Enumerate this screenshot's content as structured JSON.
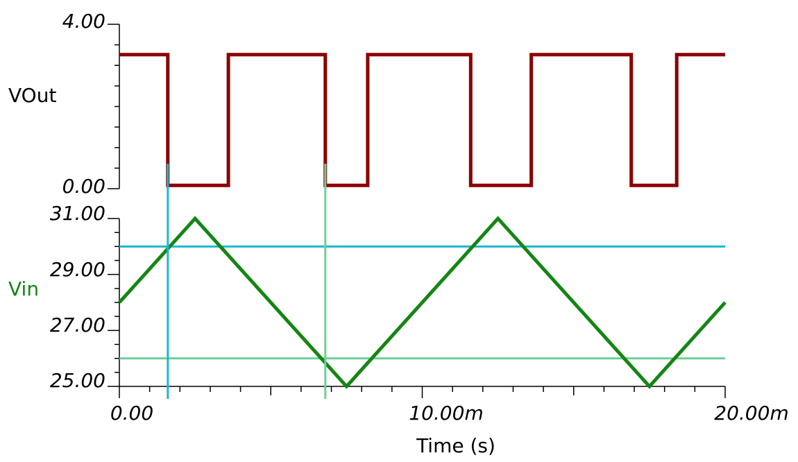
{
  "chart_data": [
    {
      "type": "line",
      "title": "",
      "xlabel": "Time (s)",
      "ylabel": "VOut",
      "xlim": [
        0,
        0.02
      ],
      "ylim": [
        0,
        4
      ],
      "yticks": [
        "4.00",
        "0.00"
      ],
      "series": [
        {
          "name": "VOut",
          "color": "#8b0000",
          "x": [
            0,
            0.0016,
            0.0016,
            0.0036,
            0.0036,
            0.0068,
            0.0068,
            0.0082,
            0.0082,
            0.0116,
            0.0116,
            0.0136,
            0.0136,
            0.0169,
            0.0169,
            0.0184,
            0.0184,
            0.02
          ],
          "y": [
            3.26,
            3.26,
            0.08,
            0.08,
            3.26,
            3.26,
            0.08,
            0.08,
            3.26,
            3.26,
            0.08,
            0.08,
            3.26,
            3.26,
            0.08,
            0.08,
            3.26,
            3.26
          ]
        }
      ]
    },
    {
      "type": "line",
      "title": "",
      "xlabel": "Time (s)",
      "ylabel": "Vin",
      "xlim": [
        0,
        0.02
      ],
      "ylim": [
        25,
        31
      ],
      "xticks": [
        "0.00",
        "10.00m",
        "20.00m"
      ],
      "yticks": [
        "31.00",
        "29.00",
        "27.00",
        "25.00"
      ],
      "series": [
        {
          "name": "Vin",
          "color": "#138613",
          "x": [
            0,
            0.0025,
            0.0075,
            0.0125,
            0.0175,
            0.02
          ],
          "y": [
            28,
            31,
            25,
            31,
            25,
            28
          ]
        }
      ],
      "annotations": [
        {
          "kind": "hline",
          "y": 30.0,
          "color": "#1ab8cc"
        },
        {
          "kind": "hline",
          "y": 26.0,
          "color": "#6fcf97"
        },
        {
          "kind": "vline",
          "x": 0.0016,
          "color": "#1ab8cc"
        },
        {
          "kind": "vline",
          "x": 0.0068,
          "color": "#6fcf97"
        }
      ]
    }
  ],
  "labels": {
    "top_ytick_max": "4.00",
    "top_ytick_min": "0.00",
    "top_ylabel": "VOut",
    "bottom_ylabel": "Vin",
    "bottom_yticks": [
      "31.00",
      "29.00",
      "27.00",
      "25.00"
    ],
    "xticks": [
      "0.00",
      "10.00m",
      "20.00m"
    ],
    "xlabel": "Time (s)"
  }
}
